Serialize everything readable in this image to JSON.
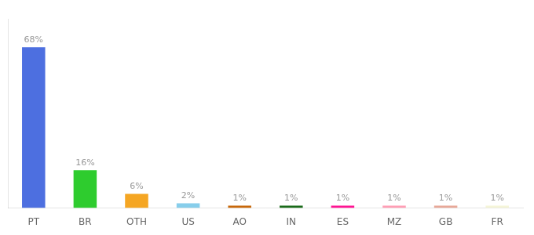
{
  "chart_data": {
    "type": "bar",
    "categories": [
      "PT",
      "BR",
      "OTH",
      "US",
      "AO",
      "IN",
      "ES",
      "MZ",
      "GB",
      "FR"
    ],
    "values": [
      68,
      16,
      6,
      2,
      1,
      1,
      1,
      1,
      1,
      1
    ],
    "value_labels": [
      "68%",
      "16%",
      "6%",
      "2%",
      "1%",
      "1%",
      "1%",
      "1%",
      "1%",
      "1%"
    ],
    "colors": [
      "#4d6fe0",
      "#2ecc2e",
      "#f5a623",
      "#87ceeb",
      "#c8680a",
      "#1a6b1a",
      "#ff1493",
      "#ff9eb5",
      "#e8a898",
      "#f5f5d8"
    ],
    "ylim": [
      0,
      80
    ],
    "grid": false,
    "data_labels": true,
    "tick_labels": "x"
  }
}
